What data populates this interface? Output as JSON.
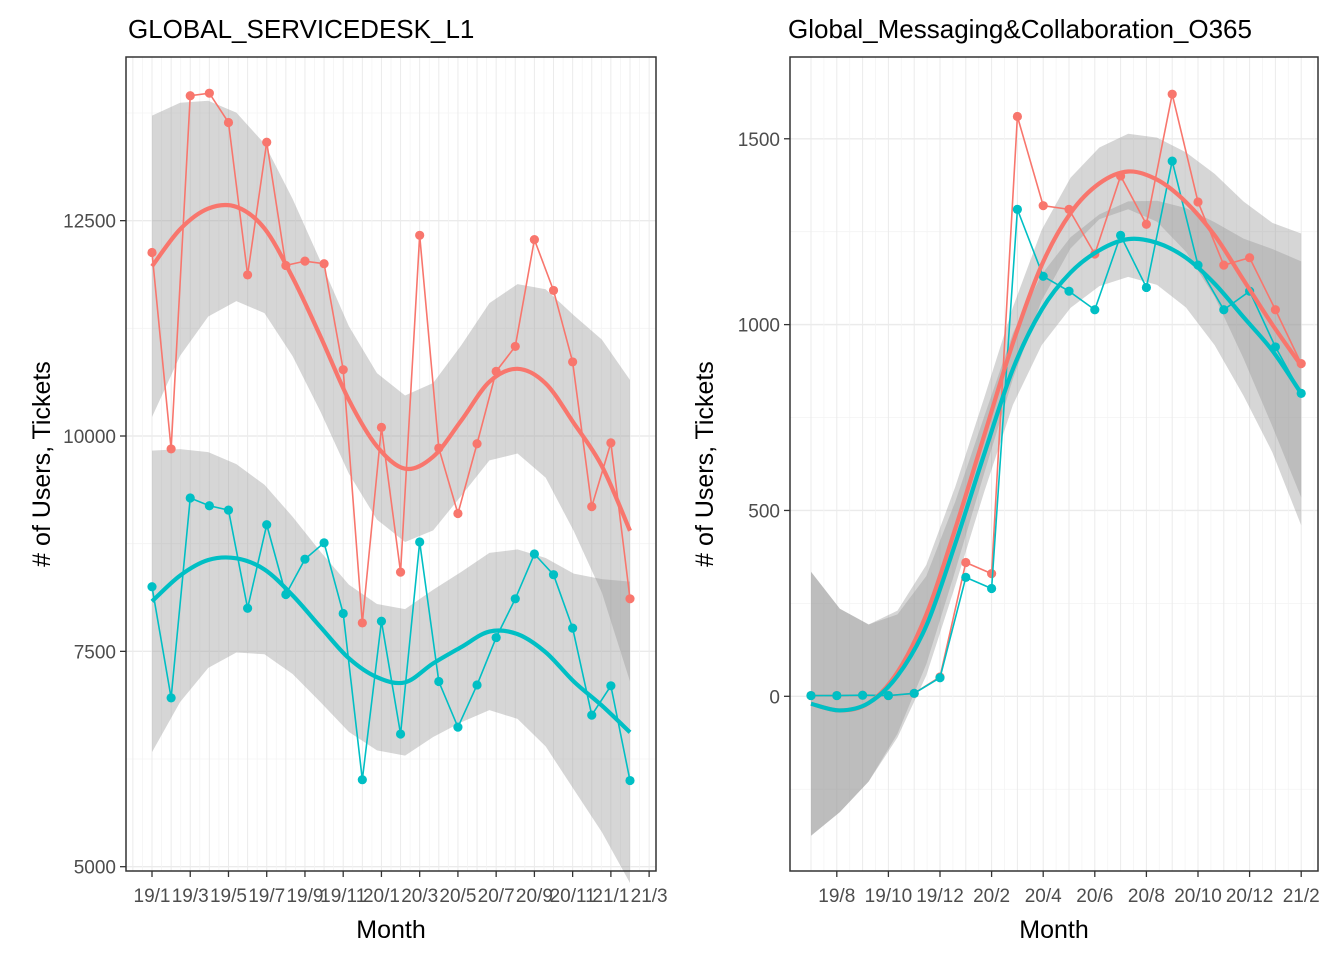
{
  "chart_data": [
    {
      "type": "line",
      "title": "GLOBAL_SERVICEDESK_L1",
      "xlabel": "Month",
      "ylabel": "# of Users, Tickets",
      "x_tick_labels": [
        "19/1",
        "19/3",
        "19/5",
        "19/7",
        "19/9",
        "19/11",
        "20/1",
        "20/3",
        "20/5",
        "20/7",
        "20/9",
        "20/11",
        "21/1",
        "21/3"
      ],
      "y_ticks": [
        5000,
        7500,
        10000,
        12500
      ],
      "ylim": [
        4950,
        14400
      ],
      "x_months": [
        0,
        1,
        2,
        3,
        4,
        5,
        6,
        7,
        8,
        9,
        10,
        11,
        12,
        13,
        14,
        15,
        16,
        17,
        18,
        19,
        20,
        21,
        22,
        23,
        24,
        25
      ],
      "series": [
        {
          "color": "#F8766D",
          "values": [
            12130,
            9850,
            13950,
            13980,
            13640,
            11870,
            13410,
            11980,
            12030,
            12000,
            10770,
            7830,
            10100,
            8420,
            12330,
            9860,
            9100,
            9910,
            10750,
            11040,
            12280,
            11690,
            10860,
            9180,
            9920,
            8110
          ],
          "smooth": [
            11970,
            12400,
            12640,
            12660,
            12410,
            11840,
            11150,
            10420,
            9880,
            9620,
            9760,
            10180,
            10630,
            10780,
            10610,
            10150,
            9650,
            8900
          ]
        },
        {
          "color": "#00BFC4",
          "values": [
            8250,
            6960,
            9280,
            9190,
            9140,
            8000,
            8970,
            8160,
            8570,
            8760,
            7940,
            6010,
            7850,
            6540,
            8770,
            7150,
            6620,
            7110,
            7660,
            8110,
            8630,
            8390,
            7770,
            6760,
            7100,
            6000
          ],
          "smooth": [
            8080,
            8380,
            8560,
            8580,
            8450,
            8150,
            7780,
            7420,
            7200,
            7140,
            7360,
            7550,
            7730,
            7700,
            7490,
            7150,
            6870,
            6560
          ]
        }
      ]
    },
    {
      "type": "line",
      "title": "Global_Messaging&Collaboration_O365",
      "xlabel": "Month",
      "ylabel": "# of Users, Tickets",
      "x_tick_labels": [
        "19/8",
        "19/10",
        "19/12",
        "20/2",
        "20/4",
        "20/6",
        "20/8",
        "20/10",
        "20/12",
        "21/2"
      ],
      "y_ticks": [
        0,
        500,
        1000,
        1500
      ],
      "ylim": [
        -470,
        1720
      ],
      "x_months": [
        0,
        1,
        2,
        3,
        4,
        5,
        6,
        7,
        8,
        9,
        10,
        11,
        12,
        13,
        14,
        15,
        16,
        17,
        18,
        19
      ],
      "series": [
        {
          "color": "#F8766D",
          "values": [
            2,
            2,
            3,
            2,
            8,
            52,
            360,
            330,
            1560,
            1320,
            1310,
            1190,
            1400,
            1270,
            1620,
            1330,
            1160,
            1180,
            1040,
            895
          ],
          "smooth": [
            -20,
            -38,
            -18,
            65,
            220,
            450,
            700,
            950,
            1160,
            1300,
            1380,
            1412,
            1390,
            1330,
            1240,
            1120,
            1000,
            890
          ]
        },
        {
          "color": "#00BFC4",
          "values": [
            2,
            2,
            3,
            2,
            8,
            50,
            320,
            290,
            1310,
            1130,
            1090,
            1040,
            1240,
            1100,
            1440,
            1160,
            1040,
            1090,
            940,
            815
          ],
          "smooth": [
            -20,
            -38,
            -18,
            55,
            190,
            410,
            650,
            880,
            1040,
            1140,
            1200,
            1230,
            1220,
            1180,
            1110,
            1020,
            930,
            815
          ]
        }
      ]
    }
  ]
}
